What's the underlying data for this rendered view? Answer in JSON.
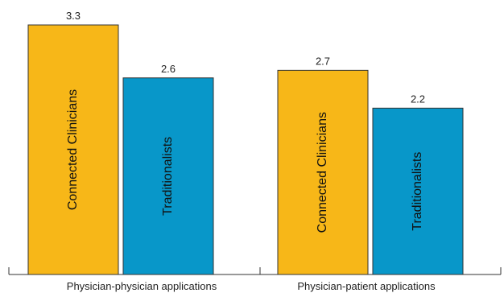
{
  "chart_data": {
    "type": "bar",
    "categories": [
      "Physician-physician applications",
      "Physician-patient applications"
    ],
    "series": [
      {
        "name": "Connected Clinicians",
        "values": [
          3.3,
          2.7
        ],
        "color": "#F7B718"
      },
      {
        "name": "Traditionalists",
        "values": [
          2.6,
          2.2
        ],
        "color": "#0897C9"
      }
    ],
    "data_labels": [
      [
        "3.3",
        "2.6"
      ],
      [
        "2.7",
        "2.2"
      ]
    ],
    "ylim": [
      0,
      3.3
    ],
    "grid": false,
    "legend": "labels inside bars"
  }
}
